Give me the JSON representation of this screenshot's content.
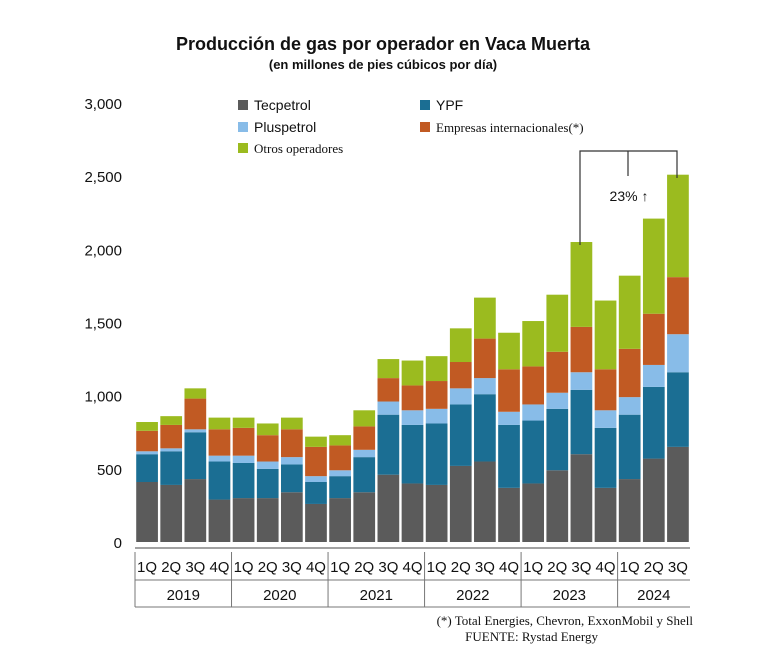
{
  "chart_data": {
    "type": "bar",
    "stacked": true,
    "title": "Producción de gas por operador en Vaca Muerta",
    "subtitle": "(en millones de pies cúbicos por día)",
    "ylim": [
      0,
      3000
    ],
    "yticks": [
      "0",
      "500",
      "1,000",
      "1,500",
      "2,000",
      "2,500",
      "3,000"
    ],
    "ytick_values": [
      0,
      500,
      1000,
      1500,
      2000,
      2500,
      3000
    ],
    "categories": [
      "1Q",
      "2Q",
      "3Q",
      "4Q",
      "1Q",
      "2Q",
      "3Q",
      "4Q",
      "1Q",
      "2Q",
      "3Q",
      "4Q",
      "1Q",
      "2Q",
      "3Q",
      "4Q",
      "1Q",
      "2Q",
      "3Q",
      "4Q",
      "1Q",
      "2Q",
      "3Q"
    ],
    "years": [
      {
        "label": "2019",
        "count": 4
      },
      {
        "label": "2020",
        "count": 4
      },
      {
        "label": "2021",
        "count": 4
      },
      {
        "label": "2022",
        "count": 4
      },
      {
        "label": "2023",
        "count": 4
      },
      {
        "label": "2024",
        "count": 3
      }
    ],
    "series": [
      {
        "name": "Tecpetrol",
        "color": "#5b5b5b",
        "values": [
          410,
          390,
          430,
          290,
          300,
          300,
          340,
          260,
          300,
          340,
          460,
          400,
          390,
          520,
          550,
          370,
          400,
          490,
          600,
          370,
          430,
          570,
          650
        ]
      },
      {
        "name": "YPF",
        "color": "#1b6e93",
        "values": [
          190,
          230,
          320,
          260,
          240,
          200,
          190,
          150,
          150,
          240,
          410,
          400,
          420,
          420,
          460,
          430,
          430,
          420,
          440,
          410,
          440,
          490,
          510
        ]
      },
      {
        "name": "Pluspetrol",
        "color": "#88bce8",
        "values": [
          20,
          20,
          20,
          40,
          50,
          50,
          50,
          40,
          40,
          50,
          90,
          100,
          100,
          110,
          110,
          90,
          110,
          110,
          120,
          120,
          120,
          150,
          260
        ]
      },
      {
        "name": "Empresas internacionales(*)",
        "color": "#c15a23",
        "values": [
          140,
          160,
          210,
          180,
          190,
          180,
          190,
          200,
          170,
          160,
          160,
          170,
          190,
          180,
          270,
          290,
          260,
          280,
          310,
          280,
          330,
          350,
          390
        ]
      },
      {
        "name": "Otros operadores",
        "color": "#9bbb1f",
        "values": [
          60,
          60,
          70,
          80,
          70,
          80,
          80,
          70,
          70,
          110,
          130,
          170,
          170,
          230,
          280,
          250,
          310,
          390,
          580,
          470,
          500,
          650,
          700
        ]
      }
    ],
    "legend": [
      "Tecpetrol",
      "YPF",
      "Pluspetrol",
      "Empresas internacionales(*)",
      "Otros operadores"
    ],
    "annotation": "23% ↑",
    "footnote": "(*) Total Energies, Chevron, ExxonMobil y Shell",
    "source": "FUENTE: Rystad Energy"
  }
}
